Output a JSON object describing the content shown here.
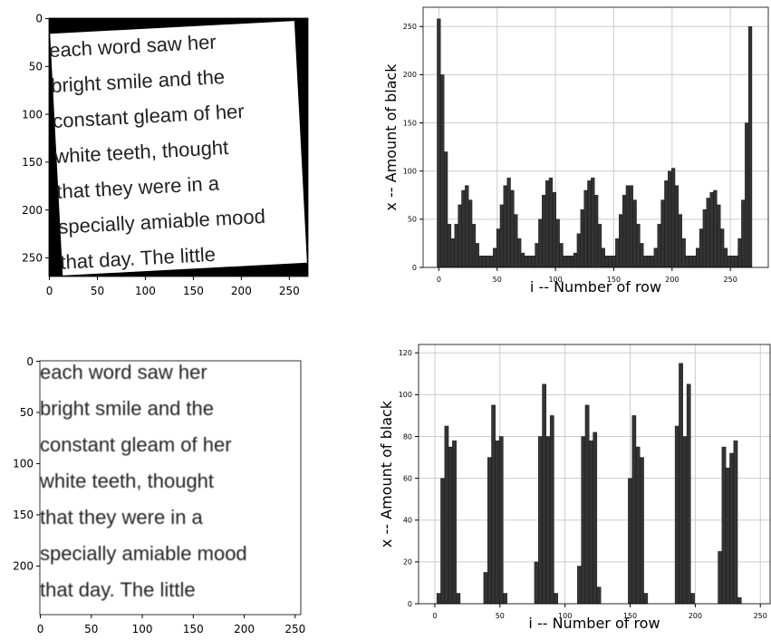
{
  "chart_data": [
    {
      "type": "image",
      "text_lines": [
        "each word saw her",
        "bright smile and the",
        "constant gleam of her",
        "white teeth, thought",
        "that they were in a",
        "specially amiable mood",
        "that day. The little"
      ],
      "xlim": [
        -0.5,
        269.5
      ],
      "ylim": [
        -0.5,
        269.5
      ],
      "xticks": [
        0,
        50,
        100,
        150,
        200,
        250
      ],
      "yticks": [
        0,
        50,
        100,
        150,
        200,
        250
      ]
    },
    {
      "type": "bar",
      "xlabel": "i -- Number of row",
      "ylabel": "x -- Amount of black",
      "color": "#333333",
      "grid": true,
      "xlim": [
        -13.5,
        282.5
      ],
      "ylim": [
        0,
        270
      ],
      "xticks": [
        0,
        50,
        100,
        150,
        200,
        250
      ],
      "yticks": [
        0,
        50,
        100,
        150,
        200,
        250
      ],
      "x": [
        0,
        3,
        6,
        9,
        12,
        15,
        18,
        21,
        24,
        27,
        30,
        33,
        36,
        39,
        42,
        45,
        48,
        51,
        54,
        57,
        60,
        63,
        66,
        69,
        72,
        75,
        78,
        81,
        84,
        87,
        90,
        93,
        96,
        99,
        102,
        105,
        108,
        111,
        114,
        117,
        120,
        123,
        126,
        129,
        132,
        135,
        138,
        141,
        144,
        147,
        150,
        153,
        156,
        159,
        162,
        165,
        168,
        171,
        174,
        177,
        180,
        183,
        186,
        189,
        192,
        195,
        198,
        201,
        204,
        207,
        210,
        213,
        216,
        219,
        222,
        225,
        228,
        231,
        234,
        237,
        240,
        243,
        246,
        249,
        252,
        255,
        258,
        261,
        264,
        267
      ],
      "values": [
        258,
        200,
        120,
        45,
        30,
        45,
        65,
        80,
        85,
        70,
        45,
        25,
        12,
        12,
        12,
        12,
        20,
        40,
        65,
        85,
        93,
        80,
        55,
        30,
        15,
        12,
        12,
        12,
        25,
        50,
        75,
        90,
        93,
        78,
        50,
        25,
        12,
        12,
        12,
        15,
        35,
        60,
        80,
        90,
        93,
        75,
        45,
        20,
        12,
        12,
        12,
        30,
        55,
        75,
        85,
        85,
        70,
        45,
        25,
        12,
        12,
        12,
        20,
        45,
        70,
        90,
        100,
        103,
        85,
        55,
        30,
        12,
        12,
        12,
        20,
        40,
        60,
        72,
        78,
        80,
        65,
        40,
        20,
        12,
        12,
        12,
        30,
        70,
        150,
        250
      ]
    },
    {
      "type": "image",
      "text_lines": [
        "each word saw her",
        "bright smile and the",
        "constant gleam of her",
        "white teeth, thought",
        "that they were in a",
        "specially amiable mood",
        "that day. The little"
      ],
      "xlim": [
        -0.5,
        255.5
      ],
      "ylim": [
        -0.5,
        247.5
      ],
      "xticks": [
        0,
        50,
        100,
        150,
        200,
        250
      ],
      "yticks": [
        0,
        50,
        100,
        150,
        200
      ]
    },
    {
      "type": "bar",
      "xlabel": "i -- Number of row",
      "ylabel": "x -- Amount of black",
      "color": "#333333",
      "grid": true,
      "xlim": [
        -12.5,
        257.5
      ],
      "ylim": [
        0,
        124
      ],
      "xticks": [
        0,
        50,
        100,
        150,
        200,
        250
      ],
      "yticks": [
        0,
        20,
        40,
        60,
        80,
        100,
        120
      ],
      "x": [
        0,
        3,
        6,
        9,
        12,
        15,
        18,
        21,
        24,
        27,
        30,
        33,
        36,
        39,
        42,
        45,
        48,
        51,
        54,
        57,
        60,
        63,
        66,
        69,
        72,
        75,
        78,
        81,
        84,
        87,
        90,
        93,
        96,
        99,
        102,
        105,
        108,
        111,
        114,
        117,
        120,
        123,
        126,
        129,
        132,
        135,
        138,
        141,
        144,
        147,
        150,
        153,
        156,
        159,
        162,
        165,
        168,
        171,
        174,
        177,
        180,
        183,
        186,
        189,
        192,
        195,
        198,
        201,
        204,
        207,
        210,
        213,
        216,
        219,
        222,
        225,
        228,
        231,
        234,
        237,
        240,
        243,
        246,
        249,
        252
      ],
      "values": [
        0,
        5,
        60,
        85,
        75,
        78,
        5,
        0,
        0,
        0,
        0,
        0,
        0,
        15,
        70,
        95,
        78,
        80,
        5,
        0,
        0,
        0,
        0,
        0,
        0,
        0,
        20,
        80,
        105,
        80,
        90,
        5,
        0,
        0,
        0,
        0,
        0,
        18,
        80,
        95,
        78,
        82,
        8,
        0,
        0,
        0,
        0,
        0,
        0,
        0,
        60,
        90,
        75,
        70,
        5,
        0,
        0,
        0,
        0,
        0,
        0,
        0,
        85,
        115,
        80,
        105,
        5,
        0,
        0,
        0,
        0,
        0,
        0,
        25,
        75,
        65,
        72,
        78,
        3,
        0,
        0,
        0,
        0,
        0,
        0
      ]
    }
  ]
}
